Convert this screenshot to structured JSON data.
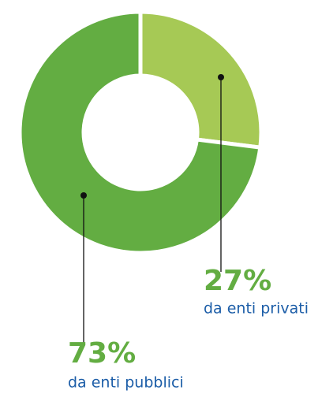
{
  "chart_data": {
    "type": "donut",
    "categories": [
      "da enti privati",
      "da enti pubblici"
    ],
    "values": [
      27,
      73
    ],
    "value_labels": [
      "27%",
      "73%"
    ],
    "colors": [
      "#a6c955",
      "#63ad42"
    ],
    "label_color": "#63ad42",
    "category_color": "#1d5ea8"
  }
}
